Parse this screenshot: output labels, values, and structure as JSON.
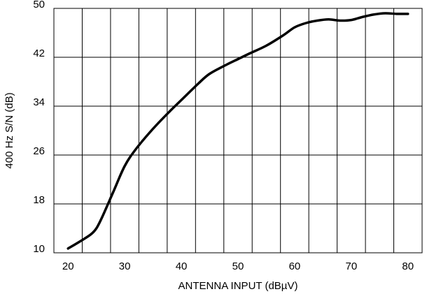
{
  "chart_data": {
    "type": "line",
    "title": "",
    "xlabel": "ANTENNA INPUT (dBµV)",
    "ylabel": "400 Hz S/N (dB)",
    "xlim": [
      17.5,
      82.5
    ],
    "ylim": [
      10,
      50
    ],
    "xticks": [
      20,
      30,
      40,
      50,
      60,
      70,
      80
    ],
    "yticks": [
      10,
      18,
      26,
      34,
      42,
      50
    ],
    "x_gridlines": [
      17.5,
      22.5,
      27.5,
      32.5,
      37.5,
      42.5,
      47.5,
      52.5,
      57.5,
      62.5,
      67.5,
      72.5,
      77.5,
      82.5
    ],
    "y_gridlines": [
      10,
      18,
      26,
      34,
      42,
      50
    ],
    "grid": true,
    "legend": "none",
    "series": [
      {
        "x": [
          20,
          22,
          24,
          25,
          26,
          28,
          30,
          32,
          35,
          38,
          40,
          43,
          45,
          48,
          50,
          52,
          55,
          58,
          60,
          62,
          64,
          66,
          68,
          70,
          72,
          74,
          76,
          78,
          80
        ],
        "values": [
          10.7,
          11.8,
          13.0,
          14.0,
          15.8,
          20.0,
          24.2,
          27.0,
          30.3,
          33.2,
          35.0,
          37.7,
          39.3,
          40.8,
          41.7,
          42.6,
          43.9,
          45.6,
          46.9,
          47.6,
          48.0,
          48.2,
          48.0,
          48.1,
          48.6,
          49.0,
          49.2,
          49.1,
          49.1
        ],
        "color": "#000000"
      }
    ]
  }
}
